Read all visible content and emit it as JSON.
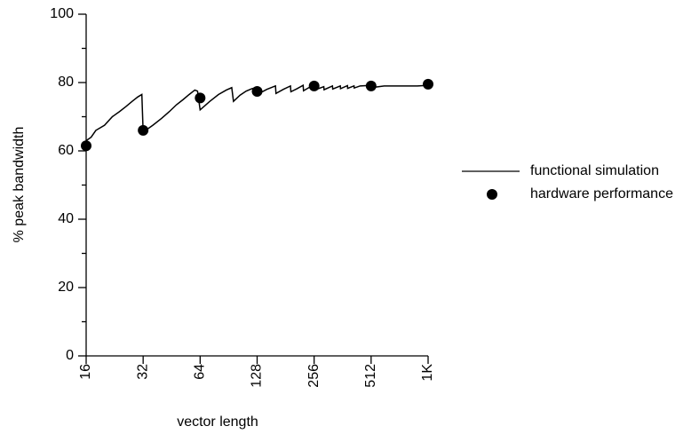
{
  "chart_data": {
    "type": "line",
    "x_label": "vector length",
    "y_label": "% peak bandwidth",
    "xscale": "log",
    "xlim": [
      16,
      1024
    ],
    "ylim": [
      0,
      100
    ],
    "xticks": [
      16,
      32,
      64,
      128,
      256,
      512,
      {
        "value": 1024,
        "label": "1K"
      }
    ],
    "yticks": [
      0,
      20,
      40,
      60,
      80,
      100
    ],
    "yminorticks": [
      10,
      30,
      50,
      70,
      90
    ],
    "grid": false,
    "legend": "right",
    "series": [
      {
        "name": "functional simulation",
        "type": "line",
        "color": "#000000",
        "x": [
          16,
          17,
          18,
          20,
          22,
          24,
          26,
          28,
          30,
          31.5,
          32,
          36,
          40,
          44,
          48,
          52,
          56,
          60,
          62,
          64,
          72,
          80,
          88,
          94,
          96,
          104,
          112,
          120,
          126,
          128,
          144,
          160,
          161,
          176,
          192,
          193,
          208,
          224,
          225,
          240,
          256,
          257,
          288,
          289,
          320,
          321,
          352,
          353,
          384,
          385,
          416,
          417,
          448,
          480,
          512,
          513,
          600,
          700,
          800,
          900,
          1024
        ],
        "values": [
          63,
          64,
          66,
          67.5,
          70,
          71.5,
          73,
          74.5,
          75.8,
          76.5,
          65.5,
          67.5,
          69.5,
          71.5,
          73.5,
          75,
          76.5,
          77.8,
          77.5,
          72,
          74.5,
          76.5,
          77.8,
          78.5,
          74.5,
          76.3,
          77.5,
          78.2,
          78.5,
          76.5,
          78,
          79,
          76.8,
          78,
          79,
          77.3,
          78.2,
          79.2,
          77.6,
          78.5,
          79.2,
          77.8,
          78.8,
          77.9,
          79,
          78.1,
          79,
          78.2,
          79.1,
          78.3,
          79,
          78.4,
          79,
          79.1,
          79.2,
          78.5,
          79,
          79,
          79,
          79,
          79.2
        ]
      },
      {
        "name": "hardware performance",
        "type": "scatter",
        "color": "#000000",
        "x": [
          16,
          32,
          64,
          128,
          256,
          512,
          1024
        ],
        "values": [
          61.5,
          66,
          75.5,
          77.4,
          79,
          79,
          79.5
        ]
      }
    ]
  }
}
